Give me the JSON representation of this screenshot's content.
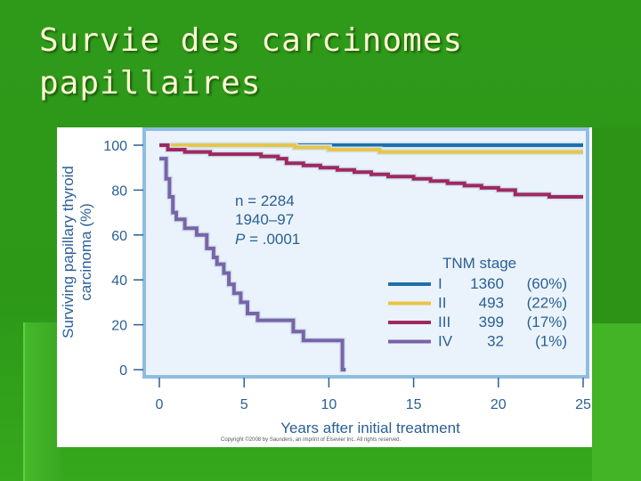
{
  "slide": {
    "title_line1": "Survie des carcinomes",
    "title_line2": "papillaires"
  },
  "chart_data": {
    "type": "line",
    "step": true,
    "title": "",
    "xlabel": "Years after initial treatment",
    "ylabel_line1": "Surviving papillary thyroid",
    "ylabel_line2": "carcinoma (%)",
    "xlim": [
      0,
      25
    ],
    "ylim": [
      0,
      100
    ],
    "x_ticks": [
      0,
      5,
      10,
      15,
      20,
      25
    ],
    "y_ticks": [
      0,
      20,
      40,
      60,
      80,
      100
    ],
    "grid": false,
    "annotation": {
      "n": "n = 2284",
      "years": "1940–97",
      "p_label": "P",
      "p_value": " = .0001"
    },
    "legend_title": "TNM stage",
    "legend_position": "right",
    "series": [
      {
        "name": "I",
        "count": "1360",
        "pct": "(60%)",
        "color": "#1e6fa8",
        "points": [
          [
            0,
            100
          ],
          [
            25,
            100
          ]
        ]
      },
      {
        "name": "II",
        "count": "493",
        "pct": "(22%)",
        "color": "#e8c547",
        "points": [
          [
            0,
            100
          ],
          [
            8,
            100
          ],
          [
            8,
            99
          ],
          [
            10,
            98
          ],
          [
            13,
            97
          ],
          [
            25,
            97
          ]
        ]
      },
      {
        "name": "III",
        "count": "399",
        "pct": "(17%)",
        "color": "#a0285f",
        "points": [
          [
            0,
            100
          ],
          [
            0.5,
            98
          ],
          [
            1.5,
            97
          ],
          [
            3,
            96
          ],
          [
            6,
            95
          ],
          [
            7,
            94
          ],
          [
            7.5,
            92
          ],
          [
            8.5,
            91
          ],
          [
            9.5,
            90
          ],
          [
            10.5,
            89
          ],
          [
            11.5,
            88
          ],
          [
            12.5,
            87
          ],
          [
            13.5,
            86
          ],
          [
            15,
            85
          ],
          [
            16,
            84
          ],
          [
            17,
            83
          ],
          [
            18,
            82
          ],
          [
            19,
            81
          ],
          [
            20,
            80
          ],
          [
            21,
            78
          ],
          [
            23,
            77
          ],
          [
            25,
            77
          ]
        ]
      },
      {
        "name": "IV",
        "count": "32",
        "pct": "(1%)",
        "color": "#7a63a6",
        "points": [
          [
            0,
            94
          ],
          [
            0.2,
            94
          ],
          [
            0.4,
            85
          ],
          [
            0.6,
            77
          ],
          [
            0.8,
            70
          ],
          [
            1,
            67
          ],
          [
            1.5,
            63
          ],
          [
            2.2,
            60
          ],
          [
            2.8,
            54
          ],
          [
            3.2,
            50
          ],
          [
            3.4,
            47
          ],
          [
            3.8,
            43
          ],
          [
            4.1,
            38
          ],
          [
            4.4,
            34
          ],
          [
            4.8,
            30
          ],
          [
            5.2,
            25
          ],
          [
            5.8,
            22
          ],
          [
            7.5,
            22
          ],
          [
            7.9,
            17
          ],
          [
            8.5,
            13
          ],
          [
            9.6,
            13
          ],
          [
            10.8,
            13
          ],
          [
            10.8,
            0
          ],
          [
            11,
            0
          ]
        ]
      }
    ]
  },
  "copyright": "Copyright ©2008 by Saunders, an imprint of Elsevier Inc. All rights reserved."
}
